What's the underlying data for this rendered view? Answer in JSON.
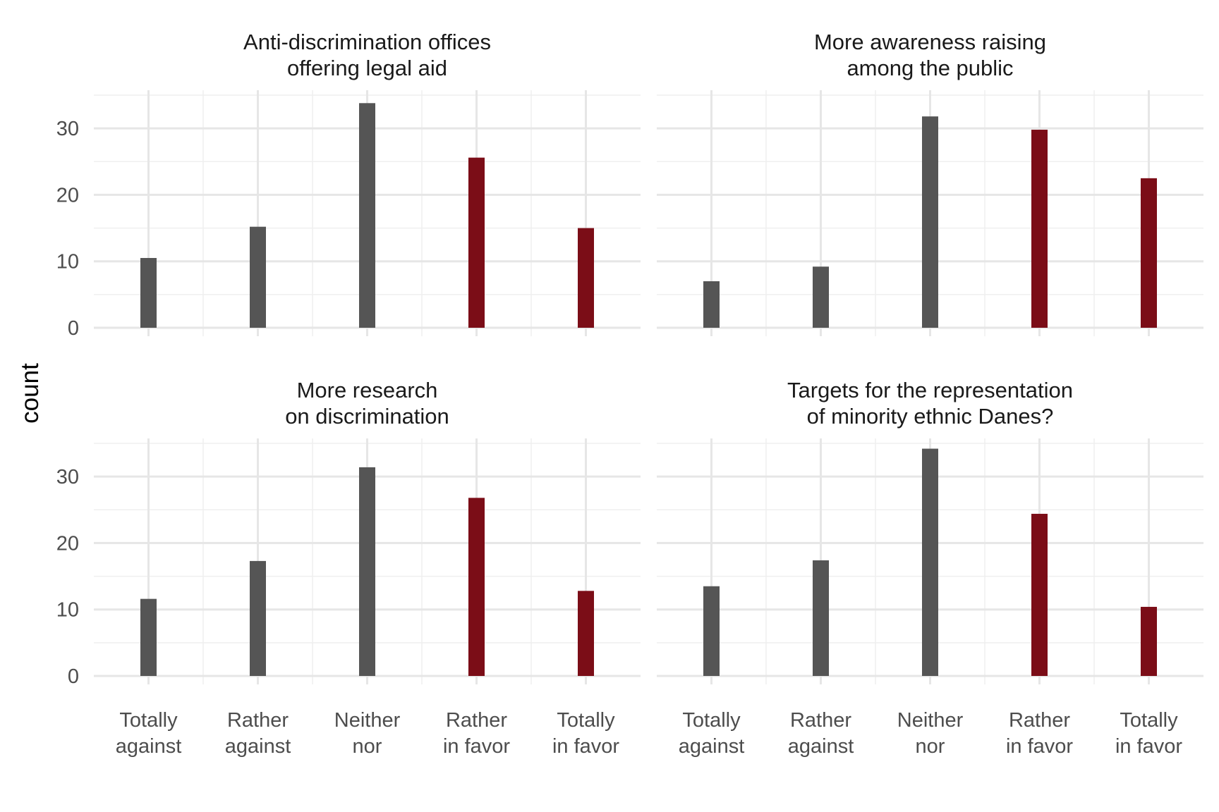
{
  "chart_data": {
    "type": "bar",
    "facet_layout": "2x2",
    "ylabel": "count",
    "xlabel": "",
    "ylim": [
      0,
      35
    ],
    "yticks": [
      0,
      10,
      20,
      30
    ],
    "grid": true,
    "categories": [
      [
        "Totally",
        "against"
      ],
      [
        "Rather",
        "against"
      ],
      [
        "Neither",
        "nor"
      ],
      [
        "Rather",
        "in favor"
      ],
      [
        "Totally",
        "in favor"
      ]
    ],
    "colors": {
      "neutral_against": "#555555",
      "in_favor": "#7b0d17",
      "grid_major": "#e6e6e6",
      "grid_minor": "#efefef"
    },
    "bar_colors_by_category": [
      "neutral_against",
      "neutral_against",
      "neutral_against",
      "in_favor",
      "in_favor"
    ],
    "panels": [
      {
        "title": [
          "Anti-discrimination offices",
          "offering legal aid"
        ],
        "values": [
          10.5,
          15.2,
          33.8,
          25.6,
          15.0
        ]
      },
      {
        "title": [
          "More awareness raising",
          "among the public"
        ],
        "values": [
          7.0,
          9.2,
          31.8,
          29.8,
          22.5
        ]
      },
      {
        "title": [
          "More research",
          "on discrimination"
        ],
        "values": [
          11.6,
          17.3,
          31.4,
          26.8,
          12.8
        ]
      },
      {
        "title": [
          "Targets for the representation",
          "of minority ethnic Danes?"
        ],
        "values": [
          13.5,
          17.4,
          34.2,
          24.4,
          10.4
        ]
      }
    ]
  }
}
